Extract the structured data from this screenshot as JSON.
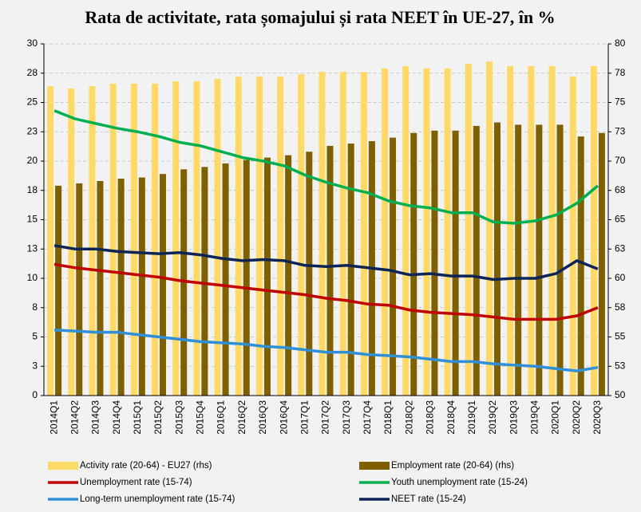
{
  "chart_data": {
    "type": "bar",
    "title": "Rata de activitate, rata șomajului și rata NEET în UE-27, în %",
    "categories": [
      "2014Q1",
      "2014Q2",
      "2014Q3",
      "2014Q4",
      "2015Q1",
      "2015Q2",
      "2015Q3",
      "2015Q4",
      "2016Q1",
      "2016Q2",
      "2016Q3",
      "2016Q4",
      "2017Q1",
      "2017Q2",
      "2017Q3",
      "2017Q4",
      "2018Q1",
      "2018Q2",
      "2018Q3",
      "2018Q4",
      "2019Q1",
      "2019Q2",
      "2019Q3",
      "2019Q4",
      "2020Q1",
      "2020Q2",
      "2020Q3"
    ],
    "series": [
      {
        "name": "Activity rate (20-64) - EU27 (rhs)",
        "type": "bar",
        "axis": "y2",
        "color": "#FFD966",
        "values": [
          76.4,
          76.2,
          76.4,
          76.6,
          76.6,
          76.6,
          76.8,
          76.8,
          77.0,
          77.2,
          77.2,
          77.2,
          77.4,
          77.6,
          77.6,
          77.6,
          77.9,
          78.1,
          77.9,
          77.9,
          78.3,
          78.5,
          78.1,
          78.1,
          78.1,
          77.2,
          78.1
        ]
      },
      {
        "name": "Employment rate (20-64) (rhs)",
        "type": "bar",
        "axis": "y2",
        "color": "#7F6000",
        "values": [
          67.9,
          68.1,
          68.3,
          68.5,
          68.6,
          68.9,
          69.3,
          69.5,
          69.8,
          70.1,
          70.3,
          70.5,
          70.8,
          71.3,
          71.5,
          71.7,
          72.0,
          72.4,
          72.6,
          72.6,
          73.0,
          73.3,
          73.1,
          73.1,
          73.1,
          72.1,
          72.4
        ]
      },
      {
        "name": "Unemployment rate (15-74)",
        "type": "line",
        "color": "#C00000",
        "values": [
          11.2,
          10.9,
          10.7,
          10.5,
          10.3,
          10.1,
          9.8,
          9.6,
          9.4,
          9.2,
          9.0,
          8.8,
          8.6,
          8.3,
          8.1,
          7.8,
          7.7,
          7.3,
          7.1,
          7.0,
          6.9,
          6.7,
          6.5,
          6.5,
          6.5,
          6.8,
          7.5
        ]
      },
      {
        "name": "Youth unemployment rate (15-24)",
        "type": "line",
        "color": "#00B050",
        "values": [
          24.3,
          23.6,
          23.2,
          22.8,
          22.5,
          22.1,
          21.6,
          21.3,
          20.8,
          20.3,
          20.0,
          19.6,
          18.8,
          18.2,
          17.7,
          17.3,
          16.6,
          16.2,
          16.0,
          15.6,
          15.6,
          14.8,
          14.7,
          14.9,
          15.4,
          16.4,
          17.9
        ]
      },
      {
        "name": "Long-term unemployment rate (15-74)",
        "type": "line",
        "color": "#2F8FD8",
        "values": [
          5.6,
          5.5,
          5.4,
          5.4,
          5.2,
          5.0,
          4.8,
          4.6,
          4.5,
          4.4,
          4.2,
          4.1,
          3.9,
          3.7,
          3.7,
          3.5,
          3.4,
          3.3,
          3.1,
          2.9,
          2.9,
          2.7,
          2.6,
          2.5,
          2.3,
          2.1,
          2.4
        ]
      },
      {
        "name": "NEET rate (15-24)",
        "type": "line",
        "color": "#0D2456",
        "values": [
          12.8,
          12.5,
          12.5,
          12.3,
          12.2,
          12.1,
          12.2,
          12.0,
          11.7,
          11.5,
          11.6,
          11.5,
          11.1,
          11.0,
          11.1,
          10.9,
          10.7,
          10.3,
          10.4,
          10.2,
          10.2,
          9.9,
          10.0,
          10.0,
          10.4,
          11.5,
          10.8
        ]
      }
    ],
    "ylim": [
      0,
      30
    ],
    "yticks": [
      0,
      {
        "value": 2.5,
        "label": "3"
      },
      5,
      {
        "value": 7.5,
        "label": "8"
      },
      10,
      {
        "value": 12.5,
        "label": "13"
      },
      15,
      {
        "value": 17.5,
        "label": "18"
      },
      20,
      {
        "value": 22.5,
        "label": "23"
      },
      25,
      {
        "value": 27.5,
        "label": "28"
      },
      30
    ],
    "y2lim": [
      50,
      80
    ],
    "y2ticks": [
      50,
      {
        "value": 52.5,
        "label": "53"
      },
      55,
      {
        "value": 57.5,
        "label": "58"
      },
      60,
      {
        "value": 62.5,
        "label": "63"
      },
      65,
      {
        "value": 67.5,
        "label": "68"
      },
      70,
      {
        "value": 72.5,
        "label": "73"
      },
      75,
      {
        "value": 77.5,
        "label": "78"
      },
      80
    ],
    "grid": true
  }
}
